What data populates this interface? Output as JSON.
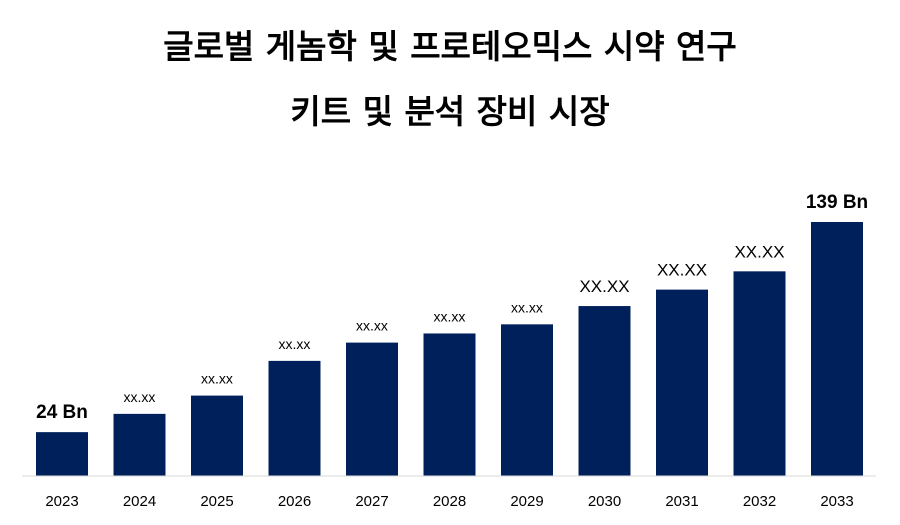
{
  "chart_data": {
    "type": "bar",
    "title_line1": "글로벌 게놈학 및 프로테오믹스 시약 연구",
    "title_line2": "키트 및 분석 장비 시장",
    "categories": [
      "2023",
      "2024",
      "2025",
      "2026",
      "2027",
      "2028",
      "2029",
      "2030",
      "2031",
      "2032",
      "2033"
    ],
    "values": [
      24,
      34,
      44,
      63,
      73,
      78,
      83,
      93,
      102,
      112,
      139
    ],
    "data_labels": [
      "24 Bn",
      "xx.xx",
      "xx.xx",
      "xx.xx",
      "xx.xx",
      "xx.xx",
      "xx.xx",
      "XX.XX",
      "XX.XX",
      "XX.XX",
      "139 Bn"
    ],
    "ylim": [
      0,
      139
    ],
    "grid": false,
    "bar_color": "#00205B"
  }
}
